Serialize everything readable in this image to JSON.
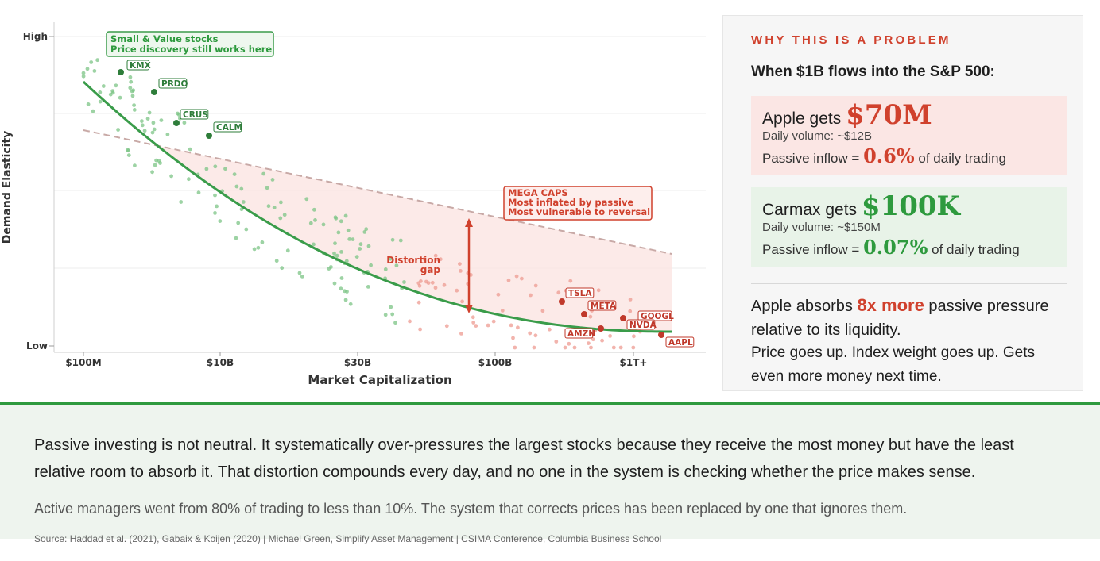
{
  "chart_data": {
    "type": "scatter",
    "xlabel": "Market Capitalization",
    "ylabel": "Demand Elasticity",
    "x_ticks": [
      "$100M",
      "$10B",
      "$30B",
      "$100B",
      "$1T+"
    ],
    "y_ticks": [
      "High",
      "Low"
    ],
    "labeled_stocks": [
      {
        "name": "KMX",
        "group": "small-value"
      },
      {
        "name": "PRDO",
        "group": "small-value"
      },
      {
        "name": "CRUS",
        "group": "small-value"
      },
      {
        "name": "CALM",
        "group": "small-value"
      },
      {
        "name": "TSLA",
        "group": "mega-cap"
      },
      {
        "name": "META",
        "group": "mega-cap"
      },
      {
        "name": "GOOGL",
        "group": "mega-cap"
      },
      {
        "name": "NVDA",
        "group": "mega-cap"
      },
      {
        "name": "AMZN",
        "group": "mega-cap"
      },
      {
        "name": "AAPL",
        "group": "mega-cap"
      }
    ],
    "series": [
      {
        "kind": "fitted-curve",
        "color": "#3a9c4a"
      },
      {
        "kind": "reference-line",
        "style": "dashed",
        "color": "#c8a9a6"
      }
    ],
    "annotations": {
      "small_value_line1": "Small & Value stocks",
      "small_value_line2": "Price discovery still works here",
      "mega_title": "MEGA CAPS",
      "mega_line2": "Most inflated by passive",
      "mega_line3": "Most vulnerable to reversal",
      "gap_line1": "Distortion",
      "gap_line2": "gap"
    },
    "colors": {
      "green": "#3a9c4a",
      "red": "#d0412d",
      "gap_fill": "#fbe6e4"
    },
    "grid": "horizontal"
  },
  "panel": {
    "kicker": "WHY THIS IS A PROBLEM",
    "headline": "When $1B flows into the S&P 500:",
    "apple": {
      "gets_prefix": "Apple gets",
      "amount": "$70M",
      "volume": "Daily volume: ~$12B",
      "inflow_prefix": "Passive inflow =",
      "inflow_pct": "0.6%",
      "inflow_suffix": "of daily trading"
    },
    "carmax": {
      "gets_prefix": "Carmax gets",
      "amount": "$100K",
      "volume": "Daily volume: ~$150M",
      "inflow_prefix": "Passive inflow =",
      "inflow_pct": "0.07%",
      "inflow_suffix": "of daily trading"
    },
    "absorb_prefix": "Apple absorbs",
    "absorb_highlight": "8x more",
    "absorb_suffix": "passive pressure relative to its liquidity.",
    "consequence": "Price goes up. Index weight goes up. Gets even more money next time."
  },
  "bottom": {
    "main": "Passive investing is not neutral. It systematically over-pressures the largest stocks because they receive the most money but have the least relative room to absorb it. That distortion compounds every day, and no one in the system is checking whether the price makes sense.",
    "sub": "Active managers went from 80% of trading to less than 10%. The system that corrects prices has been replaced by one that ignores them."
  },
  "source": "Source: Haddad et al. (2021), Gabaix & Koijen (2020) | Michael Green, Simplify Asset Management | CSIMA Conference, Columbia Business School"
}
